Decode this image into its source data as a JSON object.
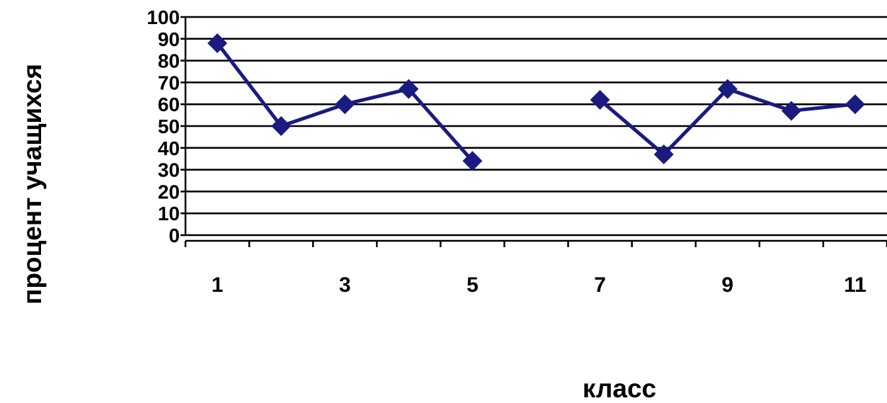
{
  "chart_data": {
    "type": "line",
    "title": "",
    "xlabel": "класс",
    "ylabel": "процент учащихся",
    "categories": [
      "1",
      "2",
      "3",
      "4",
      "5",
      "6",
      "7",
      "8",
      "9",
      "10",
      "11"
    ],
    "x_tick_labels": [
      "1",
      "",
      "3",
      "",
      "5",
      "",
      "7",
      "",
      "9",
      "",
      "11"
    ],
    "ylim": [
      0,
      100
    ],
    "y_ticks": [
      0,
      10,
      20,
      30,
      40,
      50,
      60,
      70,
      80,
      90,
      100
    ],
    "grid": true,
    "legend": "none",
    "series": [
      {
        "values": [
          88,
          50,
          60,
          67,
          34,
          null,
          62,
          37,
          67,
          57,
          60
        ],
        "color": "#1a1a80",
        "marker": "diamond"
      }
    ]
  }
}
